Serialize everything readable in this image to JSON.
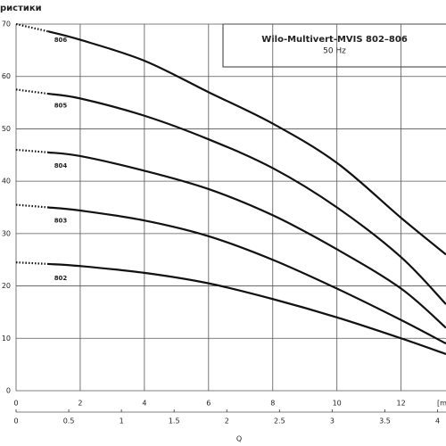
{
  "header": {
    "text": "ристики"
  },
  "chart_data": {
    "type": "line",
    "title": "Wilo-Multivert-MVIS 802–806",
    "subtitle": "50 Hz",
    "xlabel": "[m",
    "x2label": "Q",
    "x": [
      0,
      1,
      2,
      4,
      6,
      8,
      10,
      12,
      13.4
    ],
    "series": [
      {
        "name": "806",
        "color": "#111111",
        "values": [
          70,
          68.6,
          67,
          63,
          57,
          51,
          43.5,
          33,
          26
        ]
      },
      {
        "name": "805",
        "color": "#111111",
        "values": [
          57.5,
          56.7,
          55.8,
          52.5,
          48,
          42.5,
          35,
          25.5,
          16.5
        ]
      },
      {
        "name": "804",
        "color": "#111111",
        "values": [
          46,
          45.5,
          44.8,
          42,
          38.5,
          33.5,
          27,
          19.5,
          12
        ]
      },
      {
        "name": "803",
        "color": "#111111",
        "values": [
          35.5,
          35,
          34.4,
          32.5,
          29.5,
          25,
          19.5,
          13.5,
          9
        ]
      },
      {
        "name": "802",
        "color": "#111111",
        "values": [
          24.5,
          24.2,
          23.8,
          22.5,
          20.5,
          17.5,
          14,
          10,
          7
        ]
      }
    ],
    "xlim": [
      0,
      13.4
    ],
    "xticks": [
      0,
      2,
      4,
      6,
      8,
      10,
      12
    ],
    "x2lim": [
      0,
      4.08
    ],
    "x2ticks": [
      0,
      0.5,
      1,
      1.5,
      2,
      2.5,
      3,
      3.5,
      4
    ],
    "ylim": [
      0,
      70
    ],
    "yticks": [
      0,
      10,
      20,
      30,
      40,
      50,
      60,
      70
    ],
    "grid": true
  }
}
